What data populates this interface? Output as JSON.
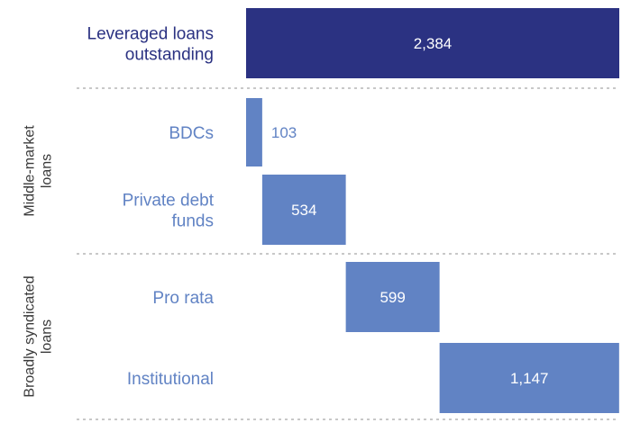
{
  "chart_data": {
    "type": "bar",
    "subtype": "waterfall",
    "orientation": "horizontal",
    "categories": [
      "Leveraged loans\noutstanding",
      "BDCs",
      "Private debt\nfunds",
      "Pro rata",
      "Institutional"
    ],
    "values": [
      2384,
      103,
      534,
      599,
      1147
    ],
    "value_labels": [
      "2,384",
      "103",
      "534",
      "599",
      "1,147"
    ],
    "role": [
      "total",
      "component",
      "component",
      "component",
      "component"
    ],
    "groups": [
      {
        "name": "Middle-market\nloans",
        "members": [
          "BDCs",
          "Private debt\nfunds"
        ]
      },
      {
        "name": "Broadly syndicated\nloans",
        "members": [
          "Pro rata",
          "Institutional"
        ]
      }
    ],
    "xlim": [
      0,
      2384
    ],
    "grid": false,
    "separators": "dotted"
  },
  "colors": {
    "total_bar": "#2b3282",
    "component_bar": "#6183c4",
    "total_label": "#2b3282",
    "component_label": "#6183c4",
    "value_on_bar": "#ffffff",
    "separator": "#b5b5b5"
  }
}
